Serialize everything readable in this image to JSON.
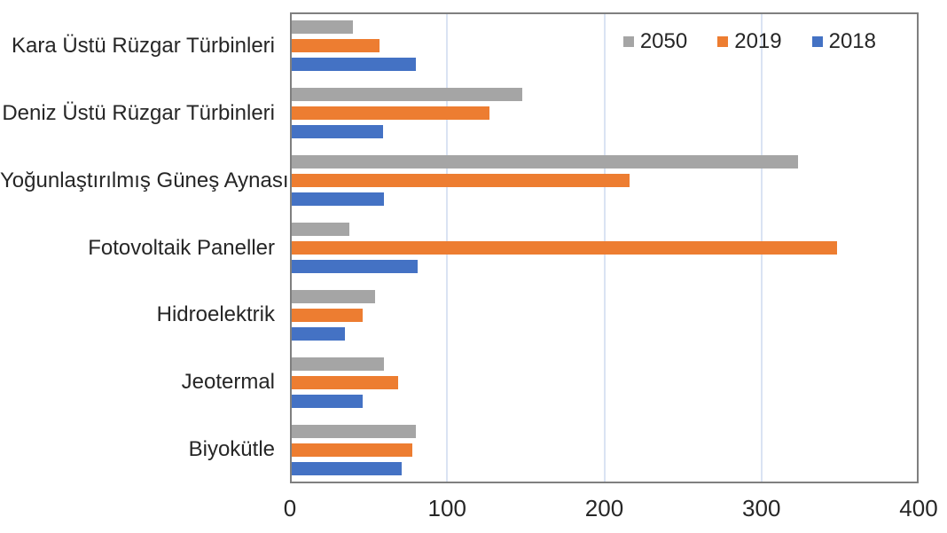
{
  "chart_data": {
    "type": "bar",
    "orientation": "horizontal",
    "title": "",
    "xlabel": "",
    "ylabel": "",
    "categories": [
      "Kara Üstü Rüzgar Türbinleri",
      "Deniz Üstü Rüzgar Türbinleri",
      "Yoğunlaştırılmış Güneş Aynası",
      "Fotovoltaik Paneller",
      "Hidroelektrik",
      "Jeotermal",
      "Biyokütle"
    ],
    "series": [
      {
        "name": "2050",
        "color": "#a5a5a5",
        "values": [
          40,
          148,
          323,
          38,
          54,
          60,
          80
        ]
      },
      {
        "name": "2019",
        "color": "#ed7d31",
        "values": [
          57,
          127,
          216,
          348,
          46,
          69,
          78
        ]
      },
      {
        "name": "2018",
        "color": "#4472c4",
        "values": [
          80,
          59,
          60,
          81,
          35,
          46,
          71
        ]
      }
    ],
    "bar_order_top_to_bottom": [
      "2050",
      "2019",
      "2018"
    ],
    "xlim": [
      0,
      400
    ],
    "x_ticks": [
      0,
      100,
      200,
      300,
      400
    ],
    "grid": true,
    "legend_position": "top-right"
  },
  "colors": {
    "background": "#ffffff",
    "gridline": "#dae3f3",
    "plot_border": "#7f7f7f",
    "text": "#262626",
    "series_2050": "#a5a5a5",
    "series_2019": "#ed7d31",
    "series_2018": "#4472c4"
  }
}
